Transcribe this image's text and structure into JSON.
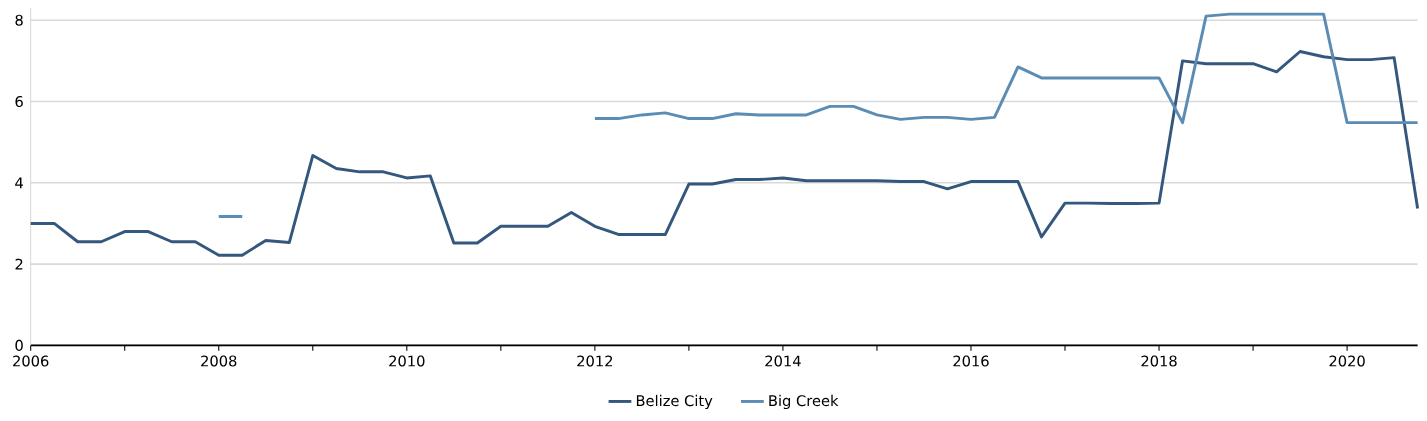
{
  "chart_data": {
    "type": "line",
    "x": [
      2006,
      2006.25,
      2006.5,
      2006.75,
      2007,
      2007.25,
      2007.5,
      2007.75,
      2008,
      2008.25,
      2008.5,
      2008.75,
      2009,
      2009.25,
      2009.5,
      2009.75,
      2010,
      2010.25,
      2010.5,
      2010.75,
      2011,
      2011.25,
      2011.5,
      2011.75,
      2012,
      2012.25,
      2012.5,
      2012.75,
      2013,
      2013.25,
      2013.5,
      2013.75,
      2014,
      2014.25,
      2014.5,
      2014.75,
      2015,
      2015.25,
      2015.5,
      2015.75,
      2016,
      2016.25,
      2016.5,
      2016.75,
      2017,
      2017.25,
      2017.5,
      2017.75,
      2018,
      2018.25,
      2018.5,
      2018.75,
      2019,
      2019.25,
      2019.5,
      2019.75,
      2020,
      2020.25,
      2020.5,
      2020.75
    ],
    "series": [
      {
        "name": "Belize City",
        "color": "#34577e",
        "values": [
          3.0,
          3.0,
          2.55,
          2.55,
          2.8,
          2.8,
          2.55,
          2.55,
          2.22,
          2.22,
          2.58,
          2.53,
          4.67,
          4.35,
          4.27,
          4.27,
          4.12,
          4.17,
          2.52,
          2.52,
          2.93,
          2.93,
          2.93,
          3.27,
          2.93,
          2.73,
          2.73,
          2.73,
          3.97,
          3.97,
          4.08,
          4.08,
          4.12,
          4.05,
          4.05,
          4.05,
          4.05,
          4.03,
          4.03,
          3.85,
          4.03,
          4.03,
          4.03,
          2.67,
          3.5,
          3.5,
          3.49,
          3.49,
          3.5,
          7.0,
          6.93,
          6.93,
          6.93,
          6.73,
          7.23,
          7.1,
          7.03,
          7.03,
          7.08,
          3.37
        ]
      },
      {
        "name": "Big Creek",
        "color": "#5b8cb4",
        "values": [
          null,
          null,
          null,
          null,
          null,
          null,
          null,
          null,
          3.17,
          3.17,
          null,
          null,
          null,
          null,
          null,
          null,
          null,
          null,
          null,
          null,
          null,
          null,
          null,
          null,
          5.58,
          5.58,
          5.67,
          5.72,
          5.58,
          5.58,
          5.7,
          5.67,
          5.67,
          5.67,
          5.88,
          5.88,
          5.67,
          5.56,
          5.61,
          5.61,
          5.56,
          5.61,
          6.85,
          6.58,
          6.58,
          6.58,
          6.58,
          6.58,
          6.58,
          5.48,
          8.1,
          8.15,
          8.15,
          8.15,
          8.15,
          8.15,
          5.48,
          5.48,
          5.48,
          5.48
        ]
      }
    ],
    "xlim": [
      2006,
      2020.75
    ],
    "xticks": [
      2006,
      {
        "value": 2007,
        "label": null
      },
      2008,
      {
        "value": 2009,
        "label": null
      },
      2010,
      {
        "value": 2011,
        "label": null
      },
      2012,
      {
        "value": 2013,
        "label": null
      },
      2014,
      {
        "value": 2015,
        "label": null
      },
      2016,
      {
        "value": 2017,
        "label": null
      },
      2018,
      {
        "value": 2019,
        "label": null
      },
      2020
    ],
    "ylim": [
      0,
      8.3
    ],
    "yticks": [
      0,
      2,
      4,
      6,
      8
    ],
    "grid": "y",
    "legend": "bottom",
    "marker": "none",
    "line_style": "solid"
  }
}
